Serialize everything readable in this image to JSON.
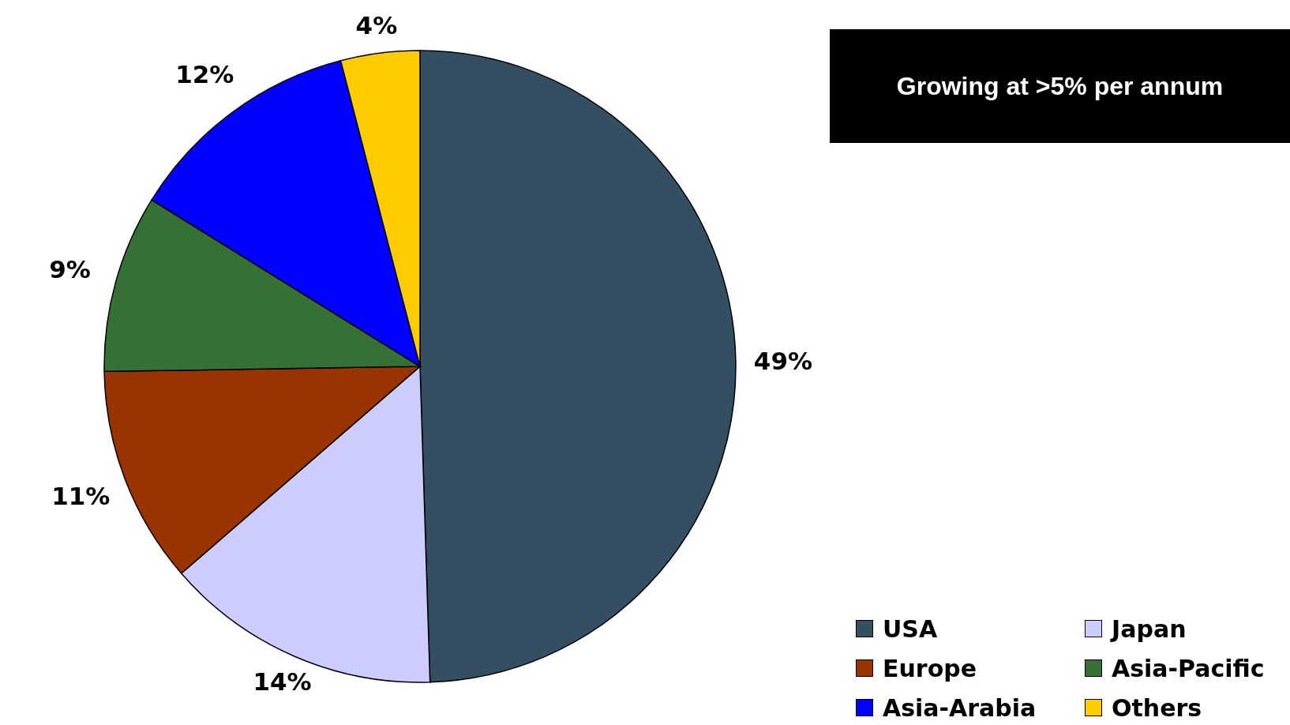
{
  "chart_data": {
    "type": "pie",
    "categories": [
      "USA",
      "Japan",
      "Europe",
      "Asia-Pacific",
      "Asia-Arabia",
      "Others"
    ],
    "values": [
      49,
      14,
      11,
      9,
      12,
      4
    ],
    "value_labels": [
      "49%",
      "14%",
      "11%",
      "9%",
      "12%",
      "4%"
    ],
    "colors": [
      "#344e62",
      "#ccccff",
      "#993300",
      "#357035",
      "#0000ff",
      "#ffcc00"
    ],
    "legend": "bottom right",
    "annotations": [
      "Growing at >5% per annum"
    ]
  }
}
